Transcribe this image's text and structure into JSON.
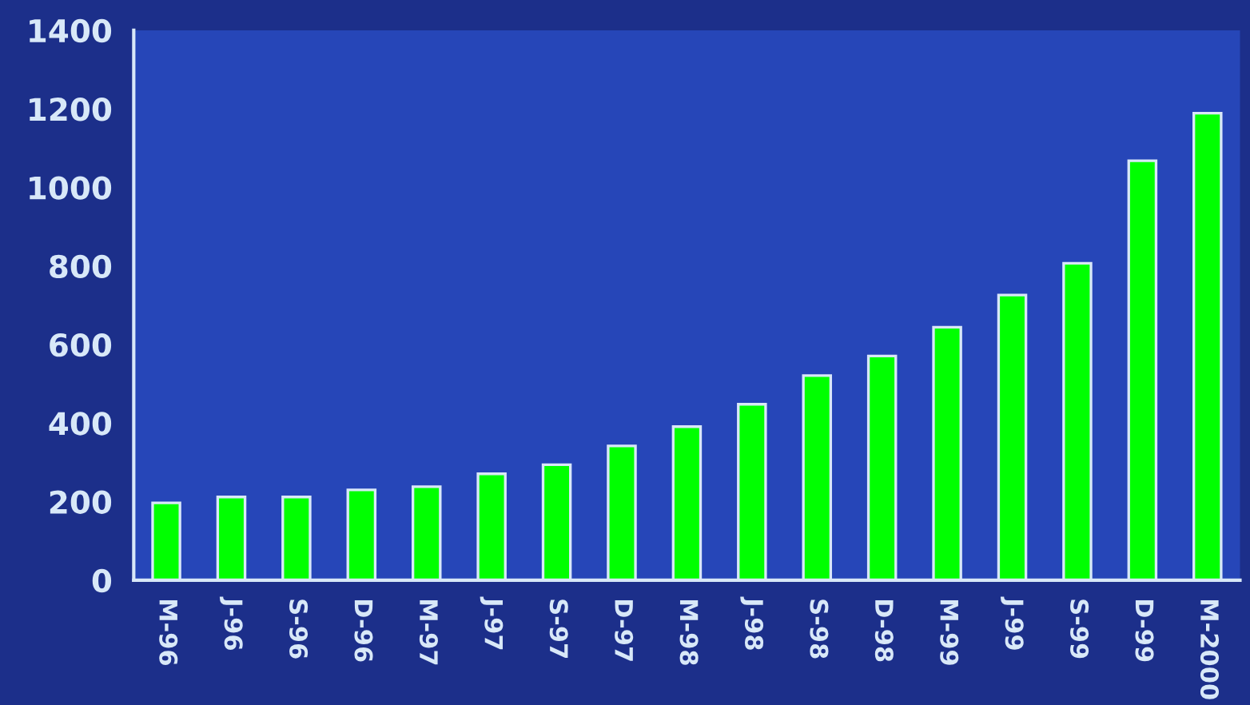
{
  "chart_data": {
    "type": "bar",
    "categories": [
      "M-96",
      "J-96",
      "S-96",
      "D-96",
      "M-97",
      "J-97",
      "S-97",
      "D-97",
      "M-98",
      "J-98",
      "S-98",
      "D-98",
      "M-99",
      "J-99",
      "S-99",
      "D-99",
      "M-2000"
    ],
    "values": [
      197,
      212,
      212,
      230,
      238,
      271,
      294,
      342,
      391,
      448,
      521,
      571,
      644,
      726,
      807,
      1068,
      1189
    ],
    "color": "#00ff00",
    "ylim": [
      0,
      1400
    ],
    "yticks": [
      0,
      200,
      400,
      600,
      800,
      1000,
      1200,
      1400
    ]
  }
}
